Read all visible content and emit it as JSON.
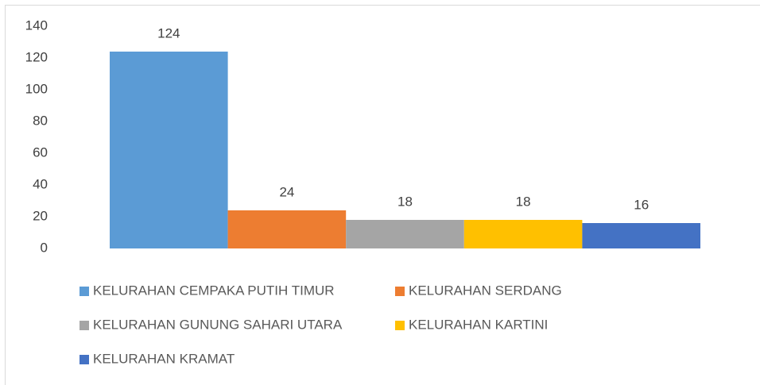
{
  "chart_data": {
    "type": "bar",
    "categories": [
      null
    ],
    "series": [
      {
        "name": "KELURAHAN CEMPAKA PUTIH TIMUR",
        "color": "#5b9bd5",
        "values": [
          124
        ]
      },
      {
        "name": "KELURAHAN SERDANG",
        "color": "#ed7d31",
        "values": [
          24
        ]
      },
      {
        "name": "KELURAHAN GUNUNG SAHARI UTARA",
        "color": "#a5a5a5",
        "values": [
          18
        ]
      },
      {
        "name": "KELURAHAN KARTINI",
        "color": "#ffc000",
        "values": [
          18
        ]
      },
      {
        "name": "KELURAHAN KRAMAT",
        "color": "#4472c4",
        "values": [
          16
        ]
      }
    ],
    "ylim": [
      0,
      140
    ],
    "yticks": [
      0,
      20,
      40,
      60,
      80,
      100,
      120,
      140
    ],
    "grid": false,
    "legend": "bottom"
  }
}
